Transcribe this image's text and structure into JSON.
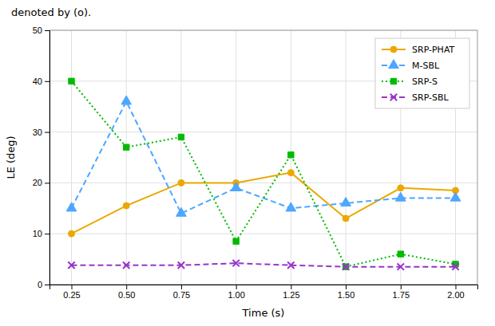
{
  "chart_data": {
    "type": "line",
    "annotation": "denoted by (o).",
    "xlabel": "Time (s)",
    "ylabel": "LE (deg)",
    "x": [
      0.25,
      0.5,
      0.75,
      1.0,
      1.25,
      1.5,
      1.75,
      2.0
    ],
    "series": [
      {
        "name": "SRP-PHAT",
        "color": "#EBA800",
        "marker": "circle",
        "line_style": "solid",
        "values": [
          10,
          15.5,
          20,
          20,
          22,
          13,
          19,
          18.5
        ]
      },
      {
        "name": "M-SBL",
        "color": "#4DA6FF",
        "marker": "triangle",
        "line_style": "dashed",
        "values": [
          15,
          36,
          14,
          19,
          15,
          16,
          17,
          17
        ]
      },
      {
        "name": "SRP-S",
        "color": "#00BB00",
        "marker": "square",
        "line_style": "dotted",
        "values": [
          40,
          27,
          29,
          8.5,
          25.5,
          3.5,
          6,
          4
        ]
      },
      {
        "name": "SRP-SBL",
        "color": "#9933CC",
        "marker": "x",
        "line_style": "dashed",
        "values": [
          3.8,
          3.8,
          3.8,
          4.2,
          3.8,
          3.5,
          3.5,
          3.5
        ]
      }
    ],
    "xlim": [
      0.15,
      2.1
    ],
    "ylim": [
      0,
      50
    ],
    "xticks": [
      0.25,
      {
        "value": 0.5,
        "label": "0.50"
      },
      0.75,
      {
        "value": 1.0,
        "label": "1.00"
      },
      1.25,
      {
        "value": 1.5,
        "label": "1.50"
      },
      1.75,
      {
        "value": 2.0,
        "label": "2.00"
      }
    ],
    "yticks": [
      0,
      10,
      20,
      30,
      40,
      50
    ],
    "grid": true,
    "legend": "upper right"
  }
}
